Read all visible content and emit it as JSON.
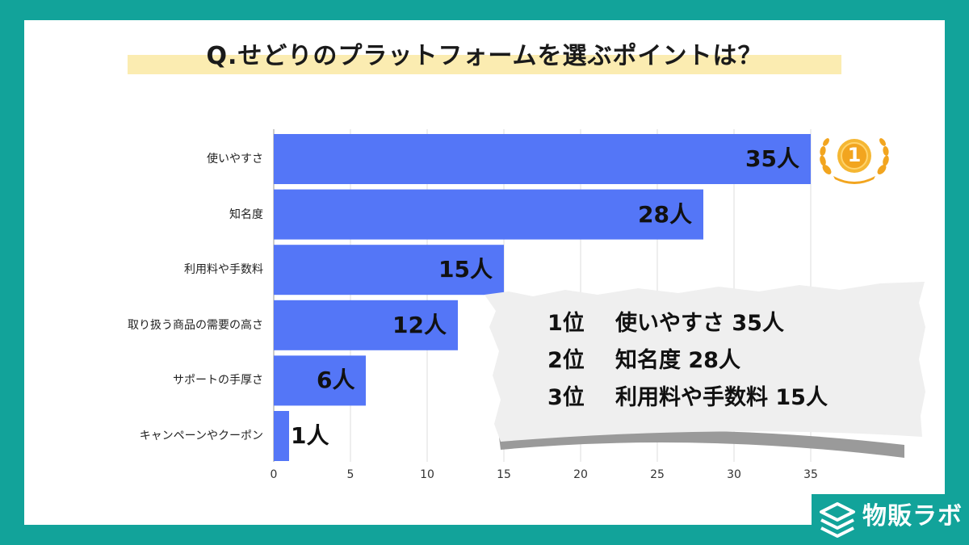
{
  "title": "Q.せどりのプラットフォームを選ぶポイントは？",
  "chart_data": {
    "type": "bar",
    "orientation": "horizontal",
    "categories": [
      "使いやすさ",
      "知名度",
      "利用料や手数料",
      "取り扱う商品の需要の高さ",
      "サポートの手厚さ",
      "キャンペーンやクーポン"
    ],
    "values": [
      35,
      28,
      15,
      12,
      6,
      1
    ],
    "value_unit": "人",
    "xlim": [
      0,
      35
    ],
    "xticks": [
      0,
      5,
      10,
      15,
      20,
      25,
      30,
      35
    ],
    "grid": true,
    "bar_color": "#5476f7"
  },
  "medal": {
    "label": "1"
  },
  "ranking": [
    {
      "rank": "1位",
      "text": "使いやすさ 35人"
    },
    {
      "rank": "2位",
      "text": "知名度 28人"
    },
    {
      "rank": "3位",
      "text": "利用料や手数料 15人"
    }
  ],
  "logo": {
    "text": "物販ラボ",
    "icon": "stacked-layers-icon"
  },
  "colors": {
    "background": "#12a39a",
    "title_highlight": "#fbecb1",
    "medal_gold": "#f2a51f"
  }
}
